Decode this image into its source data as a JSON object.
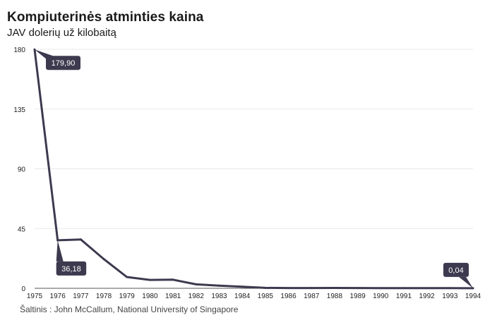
{
  "header": {
    "title": "Kompiuterinės atminties kaina",
    "subtitle": "JAV dolerių už kilobaitą"
  },
  "footer": {
    "source": "Šaltinis : John McCallum, National University of Singapore"
  },
  "colors": {
    "line": "#3d3a4f",
    "label_bg": "#3d3a4f",
    "grid": "#e8e8e8"
  },
  "chart_data": {
    "type": "line",
    "title": "Kompiuterinės atminties kaina",
    "subtitle": "JAV dolerių už kilobaitą",
    "x": [
      "1975",
      "1976",
      "1977",
      "1978",
      "1979",
      "1980",
      "1981",
      "1982",
      "1983",
      "1984",
      "1985",
      "1986",
      "1987",
      "1988",
      "1989",
      "1990",
      "1991",
      "1992",
      "1993",
      "1994"
    ],
    "series": [
      {
        "values": [
          179.9,
          36.18,
          36.8,
          22.0,
          8.5,
          6.3,
          6.5,
          3.0,
          2.0,
          1.2,
          0.3,
          0.2,
          0.2,
          0.25,
          0.2,
          0.1,
          0.1,
          0.1,
          0.1,
          0.04
        ]
      }
    ],
    "ylim": [
      0,
      180
    ],
    "yticks": [
      "0",
      "45",
      "90",
      "135",
      "180"
    ],
    "grid": true,
    "annotations": [
      {
        "index": 0,
        "text": "179,90"
      },
      {
        "index": 1,
        "text": "36,18"
      },
      {
        "index": 19,
        "text": "0,04"
      }
    ]
  }
}
